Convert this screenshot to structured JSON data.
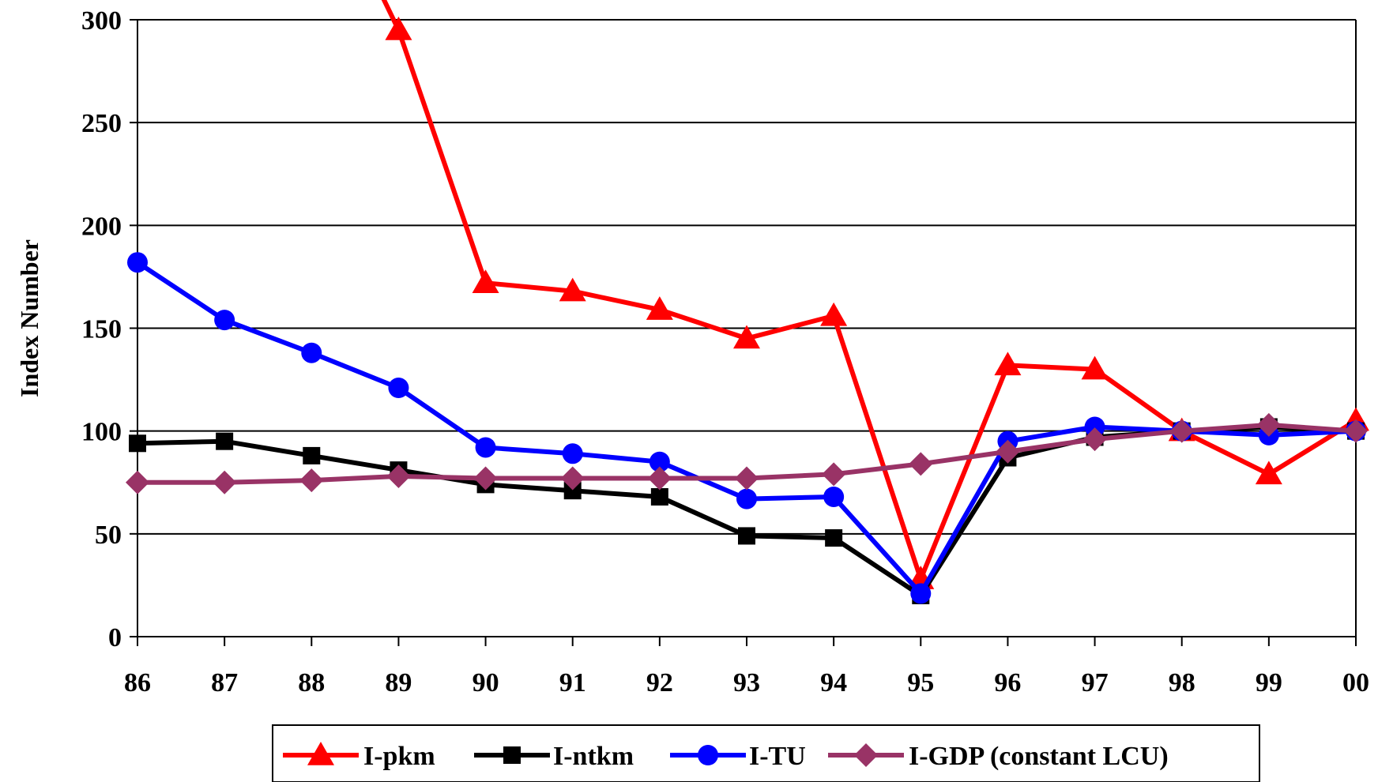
{
  "chart_data": {
    "type": "line",
    "title": "",
    "xlabel": "",
    "ylabel": "Index Number",
    "ylim": [
      0,
      300
    ],
    "yticks": [
      "0",
      "50",
      "100",
      "150",
      "200",
      "250",
      "300"
    ],
    "categories": [
      "86",
      "87",
      "88",
      "89",
      "90",
      "91",
      "92",
      "93",
      "94",
      "95",
      "96",
      "97",
      "98",
      "99",
      "00"
    ],
    "grid": "horizontal",
    "legend_position": "bottom",
    "series": [
      {
        "name": "I-pkm",
        "color": "#ff0000",
        "marker": "triangle",
        "values": [
          null,
          null,
          null,
          295,
          172,
          168,
          159,
          145,
          156,
          28,
          132,
          130,
          100,
          79,
          105
        ],
        "extends_above": {
          "from_category": "89",
          "toward_category": "88",
          "value": 330
        }
      },
      {
        "name": "I-ntkm",
        "color": "#000000",
        "marker": "square",
        "values": [
          94,
          95,
          88,
          81,
          74,
          71,
          68,
          49,
          48,
          20,
          87,
          97,
          100,
          102,
          100
        ]
      },
      {
        "name": "I-TU",
        "color": "#0000ff",
        "marker": "circle",
        "values": [
          182,
          154,
          138,
          121,
          92,
          89,
          85,
          67,
          68,
          21,
          95,
          102,
          100,
          98,
          100
        ]
      },
      {
        "name": "I-GDP (constant LCU)",
        "color": "#993366",
        "marker": "diamond",
        "values": [
          75,
          75,
          76,
          78,
          77,
          77,
          77,
          77,
          79,
          84,
          90,
          96,
          100,
          103,
          100
        ]
      }
    ]
  }
}
